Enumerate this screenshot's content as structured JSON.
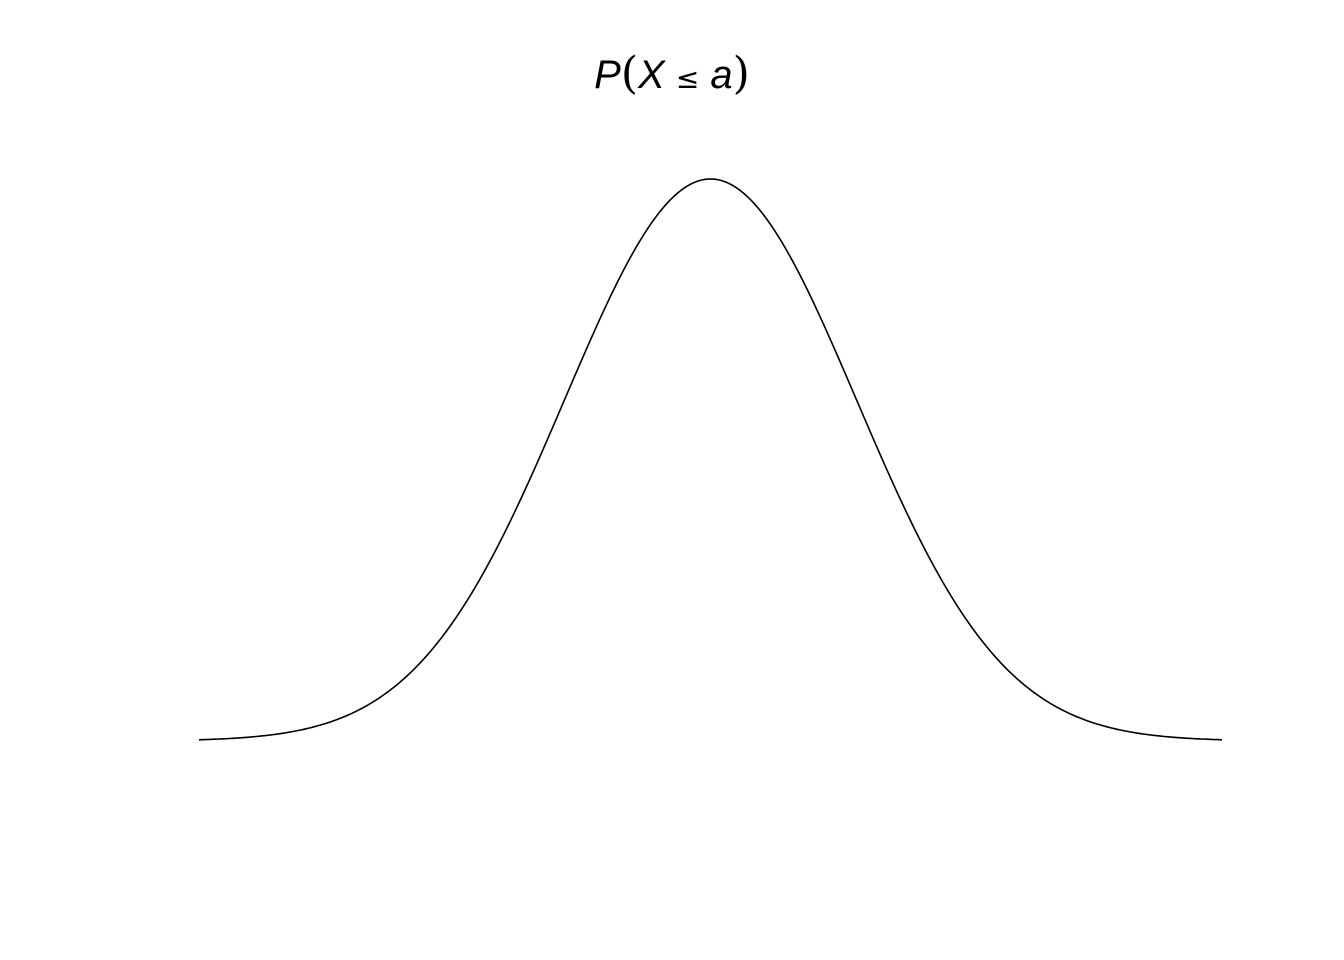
{
  "chart_data": {
    "type": "line",
    "title": {
      "p": "P",
      "open": "(",
      "x": "X",
      "op": "≤",
      "a": "a",
      "close": ")"
    },
    "xlabel": "",
    "ylabel": "",
    "distribution": "normal",
    "mean": 0,
    "sd": 1,
    "xlim": [
      -3.5,
      3.5
    ],
    "ylim": [
      0,
      0.4
    ],
    "axes": "none",
    "grid": false,
    "line_color": "#000000"
  }
}
